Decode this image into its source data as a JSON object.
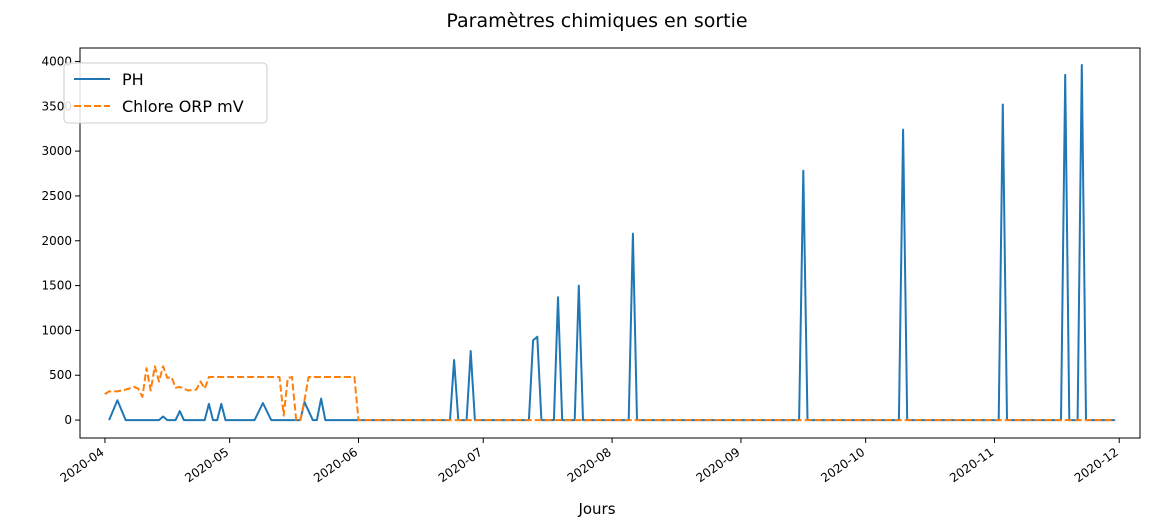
{
  "chart_data": {
    "type": "line",
    "title": "Paramètres chimiques en sortie",
    "xlabel": "Jours",
    "ylabel": "",
    "xlim": [
      "2020-03-26",
      "2020-12-06"
    ],
    "ylim": [
      -200,
      4150
    ],
    "grid": false,
    "legend": "upper-left",
    "x_tick_labels": [
      "2020-04",
      "2020-05",
      "2020-06",
      "2020-07",
      "2020-08",
      "2020-09",
      "2020-10",
      "2020-11",
      "2020-12"
    ],
    "x_tick_dates": [
      "2020-04-01",
      "2020-05-01",
      "2020-06-01",
      "2020-07-01",
      "2020-08-01",
      "2020-09-01",
      "2020-10-01",
      "2020-11-01",
      "2020-12-01"
    ],
    "y_ticks": [
      0,
      500,
      1000,
      1500,
      2000,
      2500,
      3000,
      3500,
      4000
    ],
    "series": [
      {
        "name": "PH",
        "color": "#1f77b4",
        "style": "solid",
        "points": [
          [
            "2020-04-02",
            0
          ],
          [
            "2020-04-04",
            220
          ],
          [
            "2020-04-06",
            0
          ],
          [
            "2020-04-14",
            0
          ],
          [
            "2020-04-15",
            40
          ],
          [
            "2020-04-16",
            0
          ],
          [
            "2020-04-18",
            0
          ],
          [
            "2020-04-19",
            100
          ],
          [
            "2020-04-20",
            0
          ],
          [
            "2020-04-25",
            0
          ],
          [
            "2020-04-26",
            180
          ],
          [
            "2020-04-27",
            0
          ],
          [
            "2020-04-28",
            0
          ],
          [
            "2020-04-29",
            180
          ],
          [
            "2020-04-30",
            0
          ],
          [
            "2020-05-07",
            0
          ],
          [
            "2020-05-09",
            190
          ],
          [
            "2020-05-11",
            0
          ],
          [
            "2020-05-18",
            0
          ],
          [
            "2020-05-19",
            200
          ],
          [
            "2020-05-21",
            0
          ],
          [
            "2020-05-22",
            0
          ],
          [
            "2020-05-23",
            240
          ],
          [
            "2020-05-24",
            0
          ],
          [
            "2020-06-01",
            0
          ],
          [
            "2020-06-23",
            0
          ],
          [
            "2020-06-24",
            670
          ],
          [
            "2020-06-25",
            0
          ],
          [
            "2020-06-27",
            0
          ],
          [
            "2020-06-28",
            770
          ],
          [
            "2020-06-29",
            0
          ],
          [
            "2020-07-12",
            0
          ],
          [
            "2020-07-13",
            890
          ],
          [
            "2020-07-14",
            930
          ],
          [
            "2020-07-15",
            0
          ],
          [
            "2020-07-18",
            0
          ],
          [
            "2020-07-19",
            1370
          ],
          [
            "2020-07-20",
            0
          ],
          [
            "2020-07-23",
            0
          ],
          [
            "2020-07-24",
            1500
          ],
          [
            "2020-07-25",
            0
          ],
          [
            "2020-08-05",
            0
          ],
          [
            "2020-08-06",
            2080
          ],
          [
            "2020-08-07",
            0
          ],
          [
            "2020-09-15",
            0
          ],
          [
            "2020-09-16",
            2780
          ],
          [
            "2020-09-17",
            0
          ],
          [
            "2020-10-09",
            0
          ],
          [
            "2020-10-10",
            3240
          ],
          [
            "2020-10-11",
            0
          ],
          [
            "2020-11-02",
            0
          ],
          [
            "2020-11-03",
            3520
          ],
          [
            "2020-11-04",
            0
          ],
          [
            "2020-11-17",
            0
          ],
          [
            "2020-11-18",
            3850
          ],
          [
            "2020-11-19",
            0
          ],
          [
            "2020-11-21",
            0
          ],
          [
            "2020-11-22",
            3960
          ],
          [
            "2020-11-23",
            0
          ],
          [
            "2020-11-30",
            0
          ]
        ]
      },
      {
        "name": "Chlore ORP mV",
        "color": "#ff7f0e",
        "style": "dashed",
        "points": [
          [
            "2020-04-01",
            290
          ],
          [
            "2020-04-02",
            320
          ],
          [
            "2020-04-04",
            320
          ],
          [
            "2020-04-06",
            340
          ],
          [
            "2020-04-08",
            370
          ],
          [
            "2020-04-09",
            350
          ],
          [
            "2020-04-10",
            260
          ],
          [
            "2020-04-11",
            580
          ],
          [
            "2020-04-12",
            330
          ],
          [
            "2020-04-13",
            600
          ],
          [
            "2020-04-14",
            430
          ],
          [
            "2020-04-15",
            600
          ],
          [
            "2020-04-16",
            470
          ],
          [
            "2020-04-17",
            480
          ],
          [
            "2020-04-18",
            360
          ],
          [
            "2020-04-19",
            370
          ],
          [
            "2020-04-21",
            330
          ],
          [
            "2020-04-23",
            340
          ],
          [
            "2020-04-24",
            430
          ],
          [
            "2020-04-25",
            350
          ],
          [
            "2020-04-26",
            480
          ],
          [
            "2020-05-13",
            480
          ],
          [
            "2020-05-14",
            50
          ],
          [
            "2020-05-15",
            470
          ],
          [
            "2020-05-16",
            480
          ],
          [
            "2020-05-17",
            0
          ],
          [
            "2020-05-18",
            0
          ],
          [
            "2020-05-19",
            220
          ],
          [
            "2020-05-20",
            480
          ],
          [
            "2020-05-31",
            480
          ],
          [
            "2020-06-01",
            0
          ],
          [
            "2020-11-30",
            0
          ]
        ]
      }
    ]
  }
}
